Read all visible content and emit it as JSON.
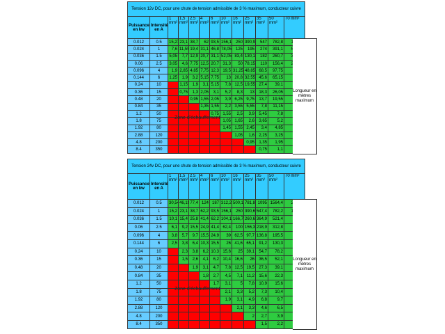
{
  "tables": [
    {
      "title": "Tension 12v DC, pour une chute de tension admissible de 3 % maximum, conducteur cuivre",
      "headers": [
        "Puissance en kw",
        "Intensité en A"
      ],
      "sections": [
        "1 mm²",
        "1,5 mm²",
        "2,5 mm²",
        "4 mm²",
        "6 mm²",
        "10 mm²",
        "16 mm²",
        "25 mm²",
        "35 mm²",
        "50 mm²",
        "70 mm²"
      ],
      "note": "Longueur en mètres maximum",
      "zone_label": "Zone d'échauffement",
      "rows": [
        {
          "power": "0.012",
          "current": "0.5",
          "lengths": [
            "15,27",
            "23,1",
            "38,7",
            "62",
            "93,5",
            "156,1",
            "250",
            "390,9",
            "547",
            "782,8",
            "1095,3"
          ]
        },
        {
          "power": "0.024",
          "current": "1",
          "lengths": [
            "7,6",
            "11,55",
            "19,4",
            "31,1",
            "46,8",
            "78,05",
            "125",
            "195",
            "274",
            "391,1",
            "547,65"
          ]
        },
        {
          "power": "0.036",
          "current": "1.5",
          "lengths": [
            "5,05",
            "7,7",
            "12,9",
            "20,7",
            "31,1",
            "52,05",
            "83,4",
            "130,1",
            "182",
            "260,7",
            "365,05"
          ]
        },
        {
          "power": "0.06",
          "current": "2.5",
          "lengths": [
            "3,05",
            "4,6",
            "7,75",
            "12,5",
            "20,7",
            "31,3",
            "50",
            "78,15",
            "110",
            "156,4",
            "219,05"
          ]
        },
        {
          "power": "0.096",
          "current": "4",
          "lengths": [
            "1,9",
            "2,85",
            "4,85",
            "7,75",
            "12,3",
            "19,5",
            "31,25",
            "48,85",
            "68,5",
            "97,75",
            "136,9"
          ]
        },
        {
          "power": "0.144",
          "current": "6",
          "lengths": [
            "1,25",
            "1,9",
            "3,2",
            "5,15",
            "7,75",
            "13",
            "20,8",
            "32,55",
            "45,6",
            "65,15",
            "91,25"
          ]
        },
        {
          "power": "0.24",
          "current": "10",
          "lengths": [
            null,
            "1,15",
            "1,9",
            "3,1",
            "5,15",
            "7,8",
            "12,5",
            "19,55",
            "27,4",
            "39,1",
            "54,75"
          ]
        },
        {
          "power": "0.36",
          "current": "15",
          "lengths": [
            null,
            "0,75",
            "1,3",
            "2,05",
            "3,1",
            "5,2",
            "8,3",
            "13",
            "18,3",
            "26,05",
            "36,5"
          ]
        },
        {
          "power": "0.48",
          "current": "20",
          "lengths": [
            null,
            null,
            "0,95",
            "1,55",
            "2,05",
            "3,9",
            "6,25",
            "9,75",
            "13,7",
            "19,55",
            "27,35"
          ]
        },
        {
          "power": "0.84",
          "current": "35",
          "lengths": [
            null,
            null,
            null,
            "1,35",
            "1,55",
            "2,2",
            "3,55",
            "5,55",
            "7,8",
            "11,15",
            "15,65"
          ]
        },
        {
          "power": "1.2",
          "current": "50",
          "lengths": [
            null,
            null,
            null,
            null,
            "0,75",
            "1,55",
            "2,5",
            "3,9",
            "5,45",
            "7,8",
            "10,95"
          ]
        },
        {
          "power": "1.8",
          "current": "75",
          "lengths": [
            null,
            null,
            null,
            null,
            null,
            "1,05",
            "1,65",
            "2,6",
            "3,65",
            "5,2",
            "7,3"
          ]
        },
        {
          "power": "1.92",
          "current": "80",
          "lengths": [
            null,
            null,
            null,
            null,
            null,
            "1,45",
            "1,55",
            "2,45",
            "3,4",
            "4,85",
            "6,85"
          ]
        },
        {
          "power": "2.88",
          "current": "120",
          "lengths": [
            null,
            null,
            null,
            null,
            null,
            null,
            "1,05",
            "1,6",
            "2,25",
            "3,25",
            "4,55"
          ]
        },
        {
          "power": "4.8",
          "current": "200",
          "lengths": [
            null,
            null,
            null,
            null,
            null,
            null,
            null,
            "0,95",
            "1,35",
            "1,95",
            "2,7"
          ]
        },
        {
          "power": "8.4",
          "current": "350",
          "lengths": [
            null,
            null,
            null,
            null,
            null,
            null,
            null,
            null,
            "0,75",
            "1,1",
            "1,55"
          ]
        }
      ]
    },
    {
      "title": "Tension 24v DC, pour une chute de tension admissible de 3 % maximum, conducteur cuivre",
      "headers": [
        "Puissance en kw",
        "Intensité en A"
      ],
      "sections": [
        "1 mm²",
        "1,5 mm²",
        "2,5 mm²",
        "4 mm²",
        "6 mm²",
        "10 mm²",
        "16 mm²",
        "25 mm²",
        "35 mm²",
        "50 mm²",
        "70 mm²"
      ],
      "note": "Longueur en mètres maximum",
      "zone_label": "Zone d'échauffement",
      "rows": [
        {
          "power": "0.012",
          "current": "0.5",
          "lengths": [
            "30,54",
            "46,19",
            "77,4",
            "124",
            "187",
            "312,2",
            "500,1",
            "781,8",
            "1095",
            "1564,4",
            "2190,6"
          ]
        },
        {
          "power": "0.024",
          "current": "1",
          "lengths": [
            "15,2",
            "23,1",
            "38,7",
            "62,2",
            "93,5",
            "156,1",
            "250",
            "390,6",
            "547,4",
            "782,2",
            "1095,3"
          ]
        },
        {
          "power": "0.036",
          "current": "1.5",
          "lengths": [
            "10,1",
            "15,4",
            "25,8",
            "41,4",
            "62,2",
            "104,1",
            "166,7",
            "260,6",
            "364,9",
            "521,4",
            "730,1"
          ]
        },
        {
          "power": "0.06",
          "current": "2.5",
          "lengths": [
            "6,1",
            "9,2",
            "15,5",
            "24,9",
            "41,4",
            "62,4",
            "100",
            "156,3",
            "218,9",
            "312,8",
            "438,1"
          ]
        },
        {
          "power": "0.096",
          "current": "4",
          "lengths": [
            "3,8",
            "5,7",
            "9,7",
            "15,5",
            "24,9",
            "39",
            "62,5",
            "97,7",
            "136,8",
            "195,5",
            "273,8"
          ]
        },
        {
          "power": "0.144",
          "current": "6",
          "lengths": [
            "2,5",
            "3,8",
            "6,4",
            "10,3",
            "15,5",
            "26",
            "41,6",
            "65,1",
            "91,2",
            "130,3",
            "182,5"
          ]
        },
        {
          "power": "0.24",
          "current": "10",
          "lengths": [
            null,
            "2,3",
            "3,8",
            "6,2",
            "10,3",
            "15,6",
            "25",
            "39,1",
            "54,7",
            "78,2",
            "109,5"
          ]
        },
        {
          "power": "0.36",
          "current": "15",
          "lengths": [
            null,
            "1,5",
            "2,6",
            "4,1",
            "6,2",
            "10,4",
            "16,6",
            "26",
            "36,5",
            "52,1",
            "73"
          ]
        },
        {
          "power": "0.48",
          "current": "20",
          "lengths": [
            null,
            null,
            "1,9",
            "3,1",
            "4,7",
            "7,8",
            "12,5",
            "19,5",
            "27,3",
            "39,1",
            "54,7"
          ]
        },
        {
          "power": "0.84",
          "current": "35",
          "lengths": [
            null,
            null,
            null,
            "1,8",
            "2,7",
            "4,5",
            "7,1",
            "11,2",
            "15,6",
            "22,3",
            "31,3"
          ]
        },
        {
          "power": "1.2",
          "current": "50",
          "lengths": [
            null,
            null,
            null,
            null,
            "1,7",
            "3,1",
            "5",
            "7,8",
            "10,9",
            "15,6",
            "21,9"
          ]
        },
        {
          "power": "1.8",
          "current": "75",
          "lengths": [
            null,
            null,
            null,
            null,
            null,
            "2,1",
            "3,3",
            "5,2",
            "7,3",
            "10,4",
            "14,6"
          ]
        },
        {
          "power": "1.92",
          "current": "80",
          "lengths": [
            null,
            null,
            null,
            null,
            null,
            "1,9",
            "3,1",
            "4,9",
            "6,8",
            "9,7",
            "13,7"
          ]
        },
        {
          "power": "2.88",
          "current": "120",
          "lengths": [
            null,
            null,
            null,
            null,
            null,
            null,
            "2,1",
            "3,3",
            "4,6",
            "6,5",
            "9,1"
          ]
        },
        {
          "power": "4.8",
          "current": "200",
          "lengths": [
            null,
            null,
            null,
            null,
            null,
            null,
            null,
            "2",
            "2,7",
            "3,9",
            "5,4"
          ]
        },
        {
          "power": "8.4",
          "current": "350",
          "lengths": [
            null,
            null,
            null,
            null,
            null,
            null,
            null,
            null,
            "1,5",
            "2,2",
            "3,1"
          ]
        }
      ]
    }
  ]
}
